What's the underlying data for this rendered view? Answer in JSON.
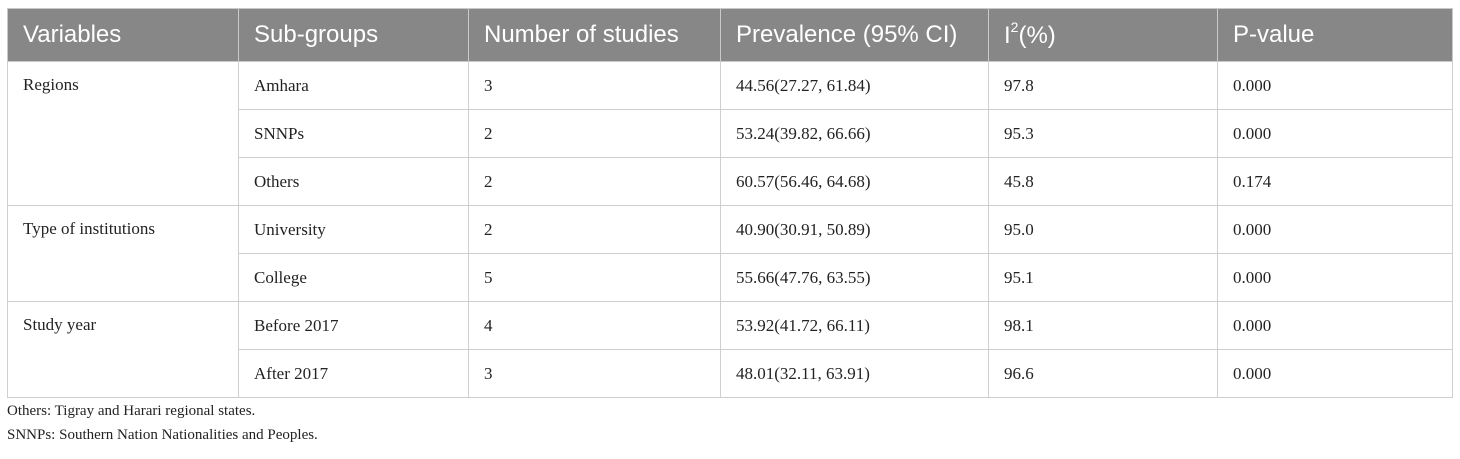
{
  "table": {
    "headers": {
      "variables": "Variables",
      "subgroups": "Sub-groups",
      "num_studies": "Number of studies",
      "prevalence": "Prevalence (95% CI)",
      "i2_base": "I",
      "i2_sup": "2",
      "i2_rest": "(%)",
      "pvalue": "P-value"
    },
    "groups": [
      {
        "variable": "Regions",
        "rows": [
          {
            "subgroup": "Amhara",
            "n": "3",
            "prevalence": "44.56(27.27, 61.84)",
            "i2": "97.8",
            "p": "0.000"
          },
          {
            "subgroup": "SNNPs",
            "n": "2",
            "prevalence": "53.24(39.82, 66.66)",
            "i2": "95.3",
            "p": "0.000"
          },
          {
            "subgroup": "Others",
            "n": "2",
            "prevalence": "60.57(56.46, 64.68)",
            "i2": "45.8",
            "p": "0.174"
          }
        ]
      },
      {
        "variable": "Type of institutions",
        "rows": [
          {
            "subgroup": "University",
            "n": "2",
            "prevalence": "40.90(30.91, 50.89)",
            "i2": "95.0",
            "p": "0.000"
          },
          {
            "subgroup": "College",
            "n": "5",
            "prevalence": "55.66(47.76, 63.55)",
            "i2": "95.1",
            "p": "0.000"
          }
        ]
      },
      {
        "variable": "Study year",
        "rows": [
          {
            "subgroup": "Before 2017",
            "n": "4",
            "prevalence": "53.92(41.72, 66.11)",
            "i2": "98.1",
            "p": "0.000"
          },
          {
            "subgroup": "After 2017",
            "n": "3",
            "prevalence": "48.01(32.11, 63.91)",
            "i2": "96.6",
            "p": "0.000"
          }
        ]
      }
    ]
  },
  "footnotes": [
    "Others: Tigray and Harari regional states.",
    "SNNPs: Southern Nation Nationalities and Peoples."
  ]
}
